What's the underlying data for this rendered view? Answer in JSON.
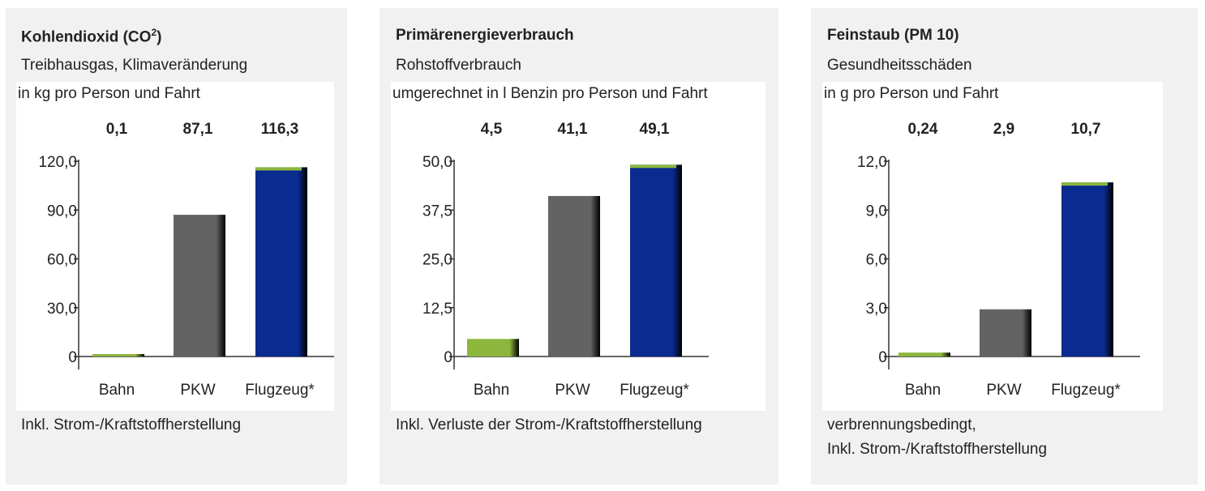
{
  "colors": {
    "panel_bg": "#f1f1f1",
    "bahn": "#8cb63c",
    "pkw": "#636363",
    "flug": "#0a2b8f",
    "flug_top": "#8cb63c",
    "axis": "#333333"
  },
  "chart_data": [
    {
      "type": "bar",
      "title": "Kohlendioxid (CO",
      "title_sup": "2",
      "title_close": ")",
      "subtitle": "Treibhausgas, Klimaveränderung",
      "ylabel": "in kg pro Person und Fahrt",
      "categories": [
        "Bahn",
        "PKW",
        "Flugzeug*"
      ],
      "values": [
        0.1,
        87.1,
        116.3
      ],
      "value_labels": [
        "0,1",
        "87,1",
        "116,3"
      ],
      "ylim": [
        0,
        120
      ],
      "yticks": [
        0,
        30,
        60,
        90,
        120
      ],
      "ytick_labels": [
        "0",
        "30,0",
        "60,0",
        "90,0",
        "120,0"
      ],
      "footnote_lines": [
        "Inkl. Strom-/Kraftstoffherstellung"
      ]
    },
    {
      "type": "bar",
      "title": "Primärenergieverbrauch",
      "title_sup": "",
      "title_close": "",
      "subtitle": "Rohstoffverbrauch",
      "ylabel": "umgerechnet in l Benzin pro Person und Fahrt",
      "categories": [
        "Bahn",
        "PKW",
        "Flugzeug*"
      ],
      "values": [
        4.5,
        41.1,
        49.1
      ],
      "value_labels": [
        "4,5",
        "41,1",
        "49,1"
      ],
      "ylim": [
        0,
        50
      ],
      "yticks": [
        0,
        12.5,
        25,
        37.5,
        50
      ],
      "ytick_labels": [
        "0",
        "12,5",
        "25,0",
        "37,5",
        "50,0"
      ],
      "footnote_lines": [
        "Inkl. Verluste der Strom-/Kraftstoffherstellung"
      ]
    },
    {
      "type": "bar",
      "title": "Feinstaub (PM 10)",
      "title_sup": "",
      "title_close": "",
      "subtitle": "Gesundheitsschäden",
      "ylabel": "in g pro Person und Fahrt",
      "categories": [
        "Bahn",
        "PKW",
        "Flugzeug*"
      ],
      "values": [
        0.24,
        2.9,
        10.7
      ],
      "value_labels": [
        "0,24",
        "2,9",
        "10,7"
      ],
      "ylim": [
        0,
        12
      ],
      "yticks": [
        0,
        3,
        6,
        9,
        12
      ],
      "ytick_labels": [
        "0",
        "3,0",
        "6,0",
        "9,0",
        "12,0"
      ],
      "footnote_lines": [
        "verbrennungsbedingt,",
        "Inkl. Strom-/Kraftstoffherstellung"
      ]
    }
  ]
}
